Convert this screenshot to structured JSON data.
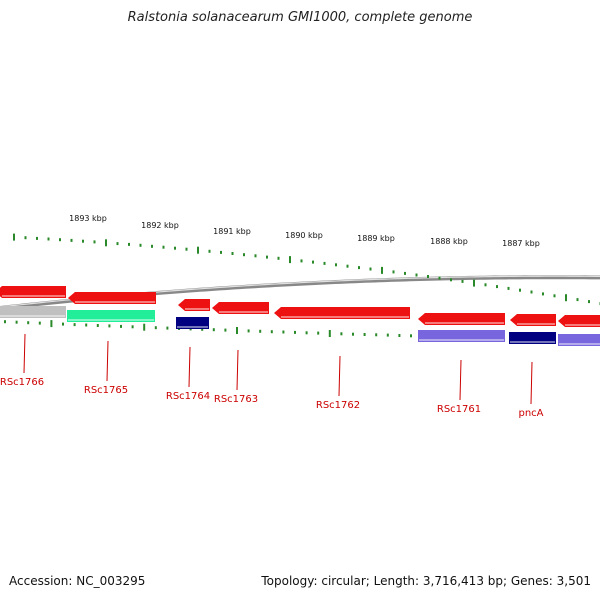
{
  "title": "Ralstonia solanacearum GMI1000, complete genome",
  "footer": {
    "accession": "Accession: NC_003295",
    "summary": "Topology: circular; Length: 3,716,413 bp; Genes: 3,501"
  },
  "colors": {
    "forward": "#ee1111",
    "backbone": "#888888",
    "tick": "#2a8a2a",
    "label": "#cc0000",
    "grey": "#c0c0c0",
    "aqua": "#22ee99",
    "navy": "#000080",
    "slate": "#7766dd"
  },
  "kbp_labels": [
    "1893 kbp",
    "1892 kbp",
    "1891 kbp",
    "1890 kbp",
    "1889 kbp",
    "1888 kbp",
    "1887 kbp"
  ],
  "genes": [
    "RSc1766",
    "RSc1765",
    "RSc1764",
    "RSc1763",
    "RSc1762",
    "RSc1761",
    "pncA"
  ]
}
